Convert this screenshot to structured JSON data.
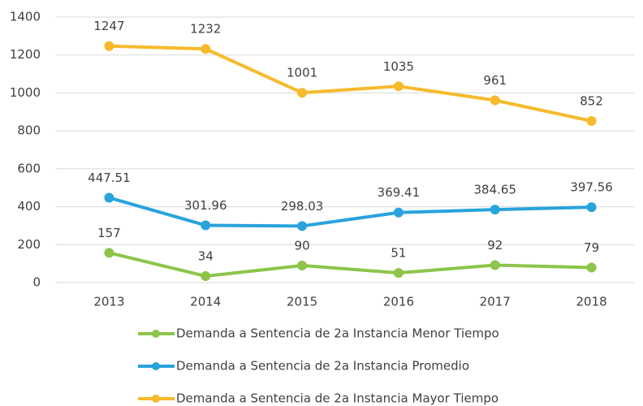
{
  "chart_data": {
    "type": "line",
    "categories": [
      "2013",
      "2014",
      "2015",
      "2016",
      "2017",
      "2018"
    ],
    "series": [
      {
        "name": "Demanda a Sentencia de 2a Instancia Menor Tiempo",
        "color": "#8cc54a",
        "values": [
          157,
          34,
          90,
          51,
          92,
          79
        ]
      },
      {
        "name": "Demanda a Sentencia de 2a Instancia Promedio",
        "color": "#29a3dc",
        "values": [
          447.51,
          301.96,
          298.03,
          369.41,
          384.65,
          397.56
        ]
      },
      {
        "name": "Demanda a Sentencia de 2a Instancia Mayor Tiempo",
        "color": "#f6ba2c",
        "values": [
          1247,
          1232,
          1001,
          1035,
          961,
          852
        ]
      }
    ],
    "ylim": [
      0,
      1400
    ],
    "yticks": [
      0,
      200,
      400,
      600,
      800,
      1000,
      1200,
      1400
    ],
    "grid": true,
    "legend": "bottom"
  }
}
